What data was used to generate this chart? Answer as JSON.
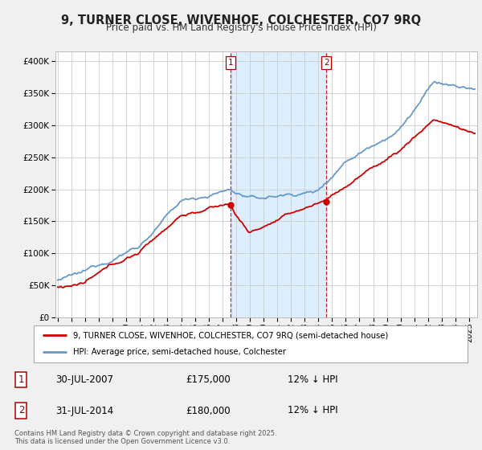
{
  "title": "9, TURNER CLOSE, WIVENHOE, COLCHESTER, CO7 9RQ",
  "subtitle": "Price paid vs. HM Land Registry's House Price Index (HPI)",
  "ytick_values": [
    0,
    50000,
    100000,
    150000,
    200000,
    250000,
    300000,
    350000,
    400000
  ],
  "ylim": [
    0,
    415000
  ],
  "sale1_date": "30-JUL-2007",
  "sale1_price": 175000,
  "sale1_pct": "12% ↓ HPI",
  "sale2_date": "31-JUL-2014",
  "sale2_price": 180000,
  "sale2_pct": "12% ↓ HPI",
  "line_color_red": "#cc0000",
  "line_color_blue": "#6699cc",
  "shaded_color": "#ddeeff",
  "vline_color": "#cc0000",
  "legend_label_red": "9, TURNER CLOSE, WIVENHOE, COLCHESTER, CO7 9RQ (semi-detached house)",
  "legend_label_blue": "HPI: Average price, semi-detached house, Colchester",
  "footer": "Contains HM Land Registry data © Crown copyright and database right 2025.\nThis data is licensed under the Open Government Licence v3.0.",
  "bg_color": "#f0f0f0",
  "plot_bg_color": "#ffffff"
}
